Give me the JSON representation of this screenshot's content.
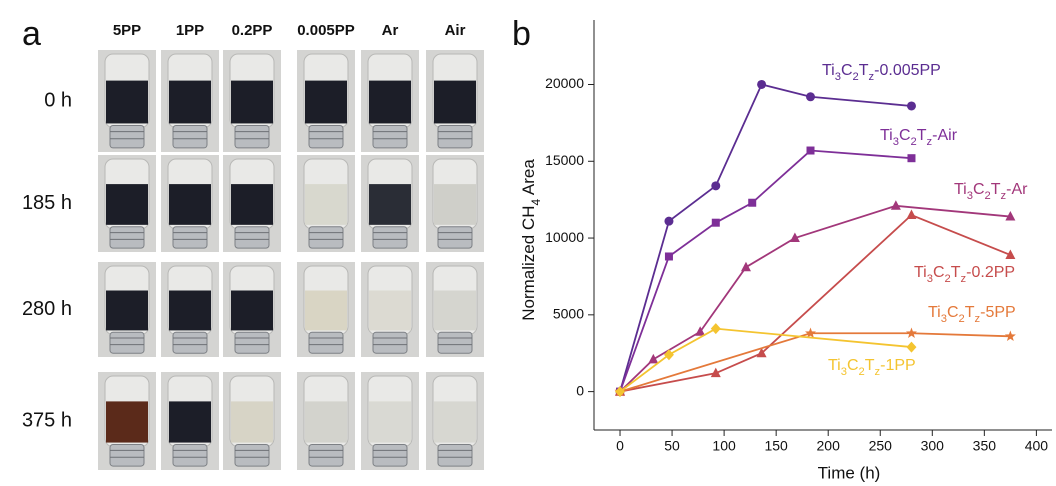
{
  "panel_a": {
    "label": "a",
    "columns": [
      "5PP",
      "1PP",
      "0.2PP",
      "0.005PP",
      "Ar",
      "Air"
    ],
    "rows": [
      "0 h",
      "185 h",
      "280 h",
      "375 h"
    ]
  },
  "chart_data": {
    "type": "line",
    "panel_label": "b",
    "x_label": "Time (h)",
    "y_label": "Normalized CH4 Area",
    "xlim": [
      -25,
      415
    ],
    "xticks": [
      0,
      50,
      100,
      150,
      200,
      250,
      300,
      350,
      400
    ],
    "ylim": [
      -2500,
      24200
    ],
    "yticks": [
      0,
      5000,
      10000,
      15000,
      20000
    ],
    "series": [
      {
        "name": "Ti3C2Tz-0.005PP",
        "color": "#5b2d91",
        "marker": "circle",
        "x": [
          0,
          47,
          92,
          136,
          183,
          280
        ],
        "values": [
          0,
          11100,
          13400,
          20000,
          19200,
          18600
        ]
      },
      {
        "name": "Ti3C2Tz-Air",
        "color": "#7e2f98",
        "marker": "square",
        "x": [
          0,
          47,
          92,
          127,
          183,
          280
        ],
        "values": [
          0,
          8800,
          11000,
          12300,
          15700,
          15200
        ]
      },
      {
        "name": "Ti3C2Tz-Ar",
        "color": "#a2377a",
        "marker": "triangle",
        "x": [
          0,
          32,
          77,
          121,
          168,
          265,
          375
        ],
        "values": [
          0,
          2100,
          3900,
          8100,
          10000,
          12100,
          11400
        ]
      },
      {
        "name": "Ti3C2Tz-0.2PP",
        "color": "#c64c4c",
        "marker": "triangle",
        "x": [
          0,
          92,
          136,
          280,
          375
        ],
        "values": [
          0,
          1200,
          2500,
          11500,
          8900
        ]
      },
      {
        "name": "Ti3C2Tz-5PP",
        "color": "#e4793a",
        "marker": "star",
        "x": [
          0,
          183,
          280,
          375
        ],
        "values": [
          0,
          3800,
          3800,
          3600
        ]
      },
      {
        "name": "Ti3C2Tz-1PP",
        "color": "#f4c430",
        "marker": "diamond",
        "x": [
          0,
          47,
          92,
          280
        ],
        "values": [
          0,
          2400,
          4100,
          2900
        ]
      }
    ]
  }
}
